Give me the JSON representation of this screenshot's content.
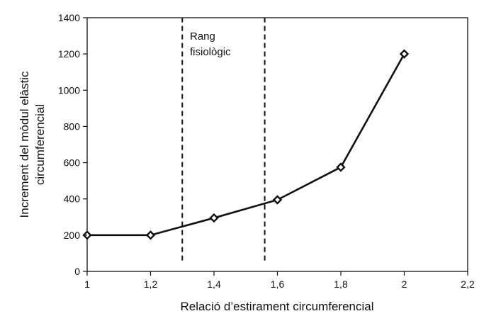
{
  "chart_data": {
    "type": "line",
    "title": "",
    "xlabel": "Relació d’estirament circumferencial",
    "ylabel_lines": [
      "Increment del mòdul elàstic",
      "circumferencial"
    ],
    "xlim": [
      1,
      2.2
    ],
    "ylim": [
      0,
      1400
    ],
    "x_ticks": [
      1,
      1.2,
      1.4,
      1.6,
      1.8,
      2,
      2.2
    ],
    "x_tick_labels": [
      "1",
      "1,2",
      "1,4",
      "1,6",
      "1,8",
      "2",
      "2,2"
    ],
    "y_ticks": [
      0,
      200,
      400,
      600,
      800,
      1000,
      1200,
      1400
    ],
    "y_tick_labels": [
      "0",
      "200",
      "400",
      "600",
      "800",
      "1000",
      "1200",
      "1400"
    ],
    "grid": false,
    "marker": "diamond",
    "line_color": "#111111",
    "series": [
      {
        "x": [
          1,
          1.2,
          1.4,
          1.6,
          1.8,
          2
        ],
        "y": [
          200,
          200,
          295,
          395,
          575,
          1200
        ]
      }
    ],
    "reference_lines": [
      {
        "orientation": "vertical",
        "style": "dashed",
        "x": 1.3,
        "y_range": [
          60,
          1400
        ]
      },
      {
        "orientation": "vertical",
        "style": "dashed",
        "x": 1.56,
        "y_range": [
          60,
          1400
        ]
      }
    ],
    "annotation": {
      "lines": [
        "Rang",
        "fisiològic"
      ],
      "x": 1.31,
      "y": 1300
    }
  }
}
